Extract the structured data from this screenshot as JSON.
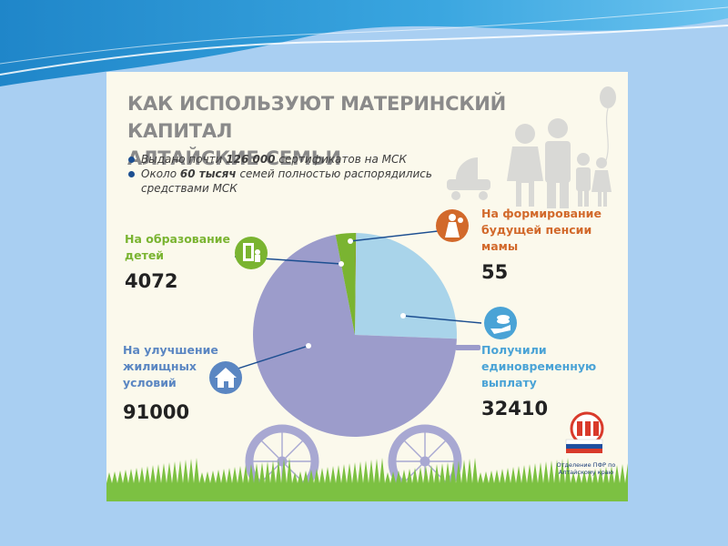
{
  "poster": {
    "title_line1": "КАК ИСПОЛЬЗУЮТ МАТЕРИНСКИЙ КАПИТАЛ",
    "title_line2": "АЛТАЙСКИЕ СЕМЬИ",
    "bullets": [
      {
        "pre": "Выдано почти ",
        "bold": "126 000",
        "post": " сертификатов на МСК"
      },
      {
        "pre": "Около ",
        "bold": "60 тысяч",
        "post": " семей полностью распорядились средствами МСК"
      }
    ],
    "logo_caption": "Отделение ПФР по Алтайскому краю",
    "icons": {
      "family": "family-icon",
      "balloon": "balloon-icon",
      "stroller": "stroller-icon",
      "education": "education-icon",
      "pension": "mother-icon",
      "payment": "money-hand-icon",
      "housing": "house-icon",
      "logo": "pfr-logo"
    }
  },
  "colors": {
    "housing": "#9c9ccb",
    "payment": "#a9d4ea",
    "education": "#7ab431",
    "pension": "#d2692b",
    "leader": "#1d4f91",
    "title": "#8a8a8a"
  },
  "chart_data": {
    "type": "pie",
    "title": "КАК ИСПОЛЬЗУЮТ МАТЕРИНСКИЙ КАПИТАЛ АЛТАЙСКИЕ СЕМЬИ",
    "categories": [
      "На формирование будущей пенсии мамы",
      "Получили единовременную выплату",
      "На улучшение жилищных условий",
      "На образование детей"
    ],
    "values": [
      55,
      32410,
      91000,
      4072
    ],
    "value_labels": [
      "55",
      "32410",
      "91000",
      "4072"
    ],
    "legend": "labels-around",
    "start_angle_deg": 0
  }
}
